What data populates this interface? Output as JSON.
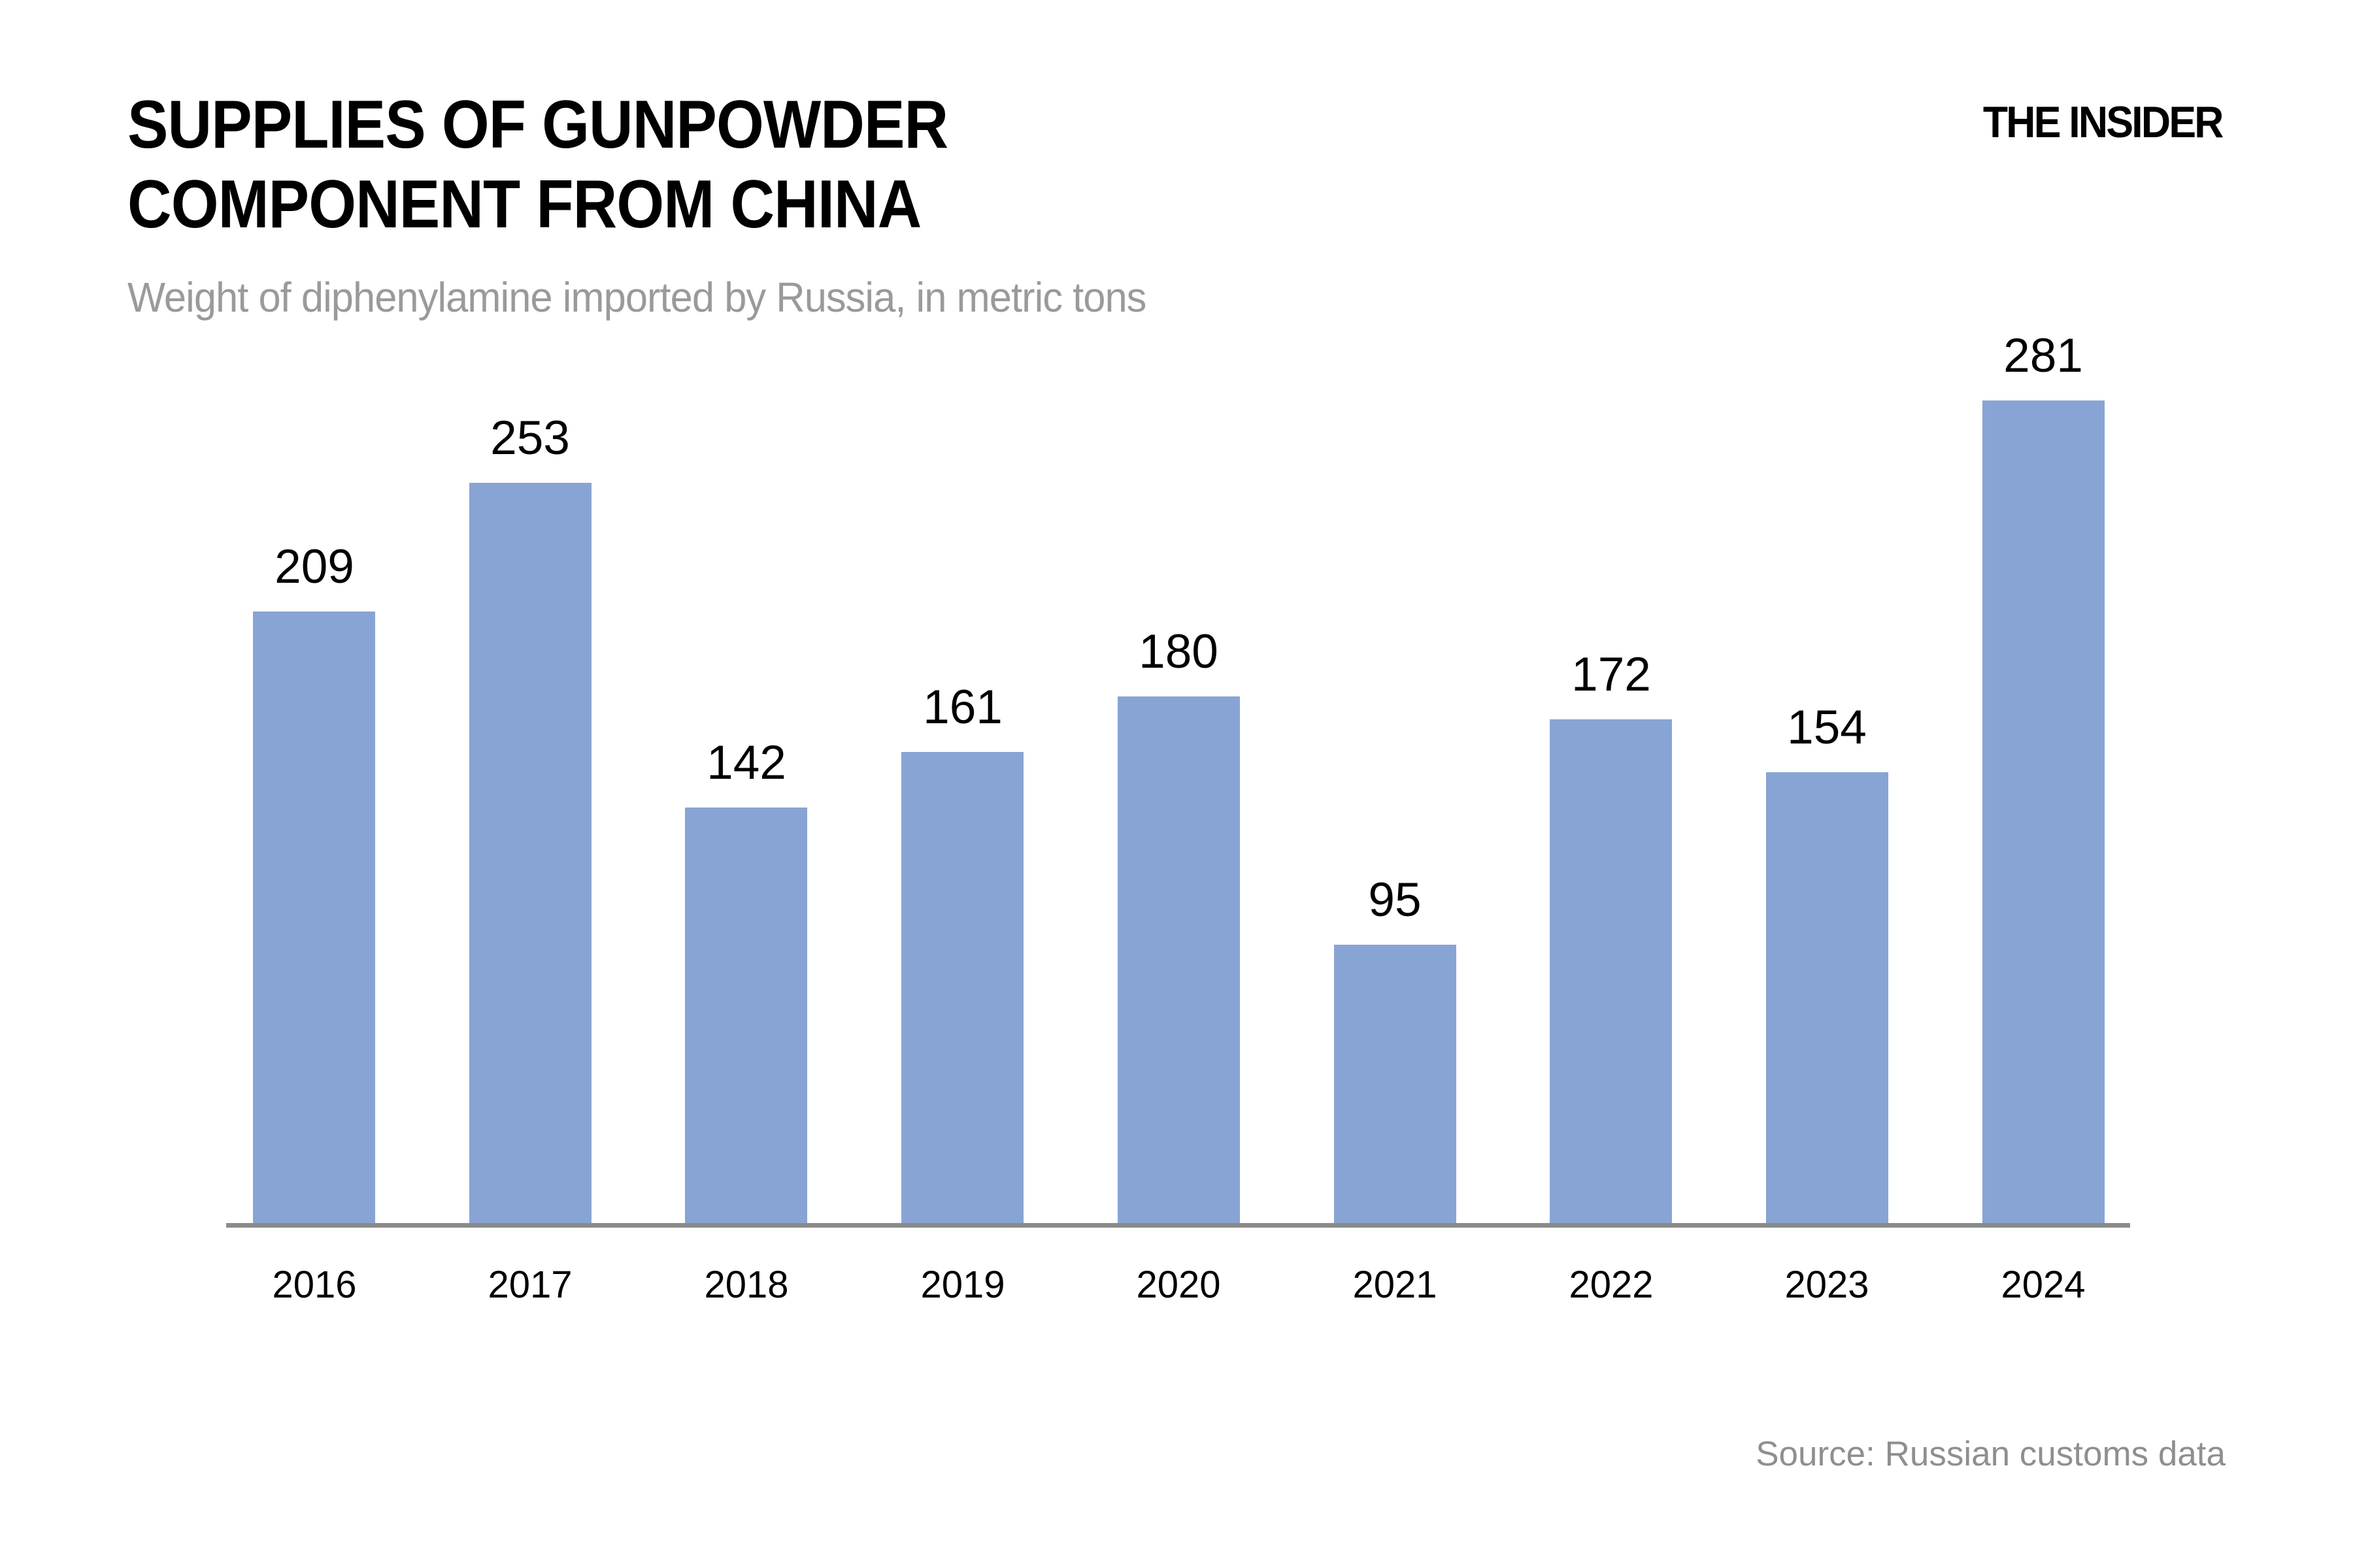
{
  "header": {
    "title_line1": "SUPPLIES OF GUNPOWDER",
    "title_line2": "COMPONENT FROM CHINA",
    "subtitle": "Weight of diphenylamine imported by Russia, in metric tons",
    "logo": "THE INSIDER"
  },
  "footer": {
    "source": "Source: Russian customs data"
  },
  "colors": {
    "bar": "#87a4d4",
    "axis": "#8a8a8a",
    "muted_text": "#9a9a9a",
    "text": "#000000",
    "background": "#ffffff"
  },
  "chart_data": {
    "type": "bar",
    "title": "SUPPLIES OF GUNPOWDER COMPONENT FROM CHINA",
    "subtitle": "Weight of diphenylamine imported by Russia, in metric tons",
    "categories": [
      "2016",
      "2017",
      "2018",
      "2019",
      "2020",
      "2021",
      "2022",
      "2023",
      "2024"
    ],
    "values": [
      209,
      253,
      142,
      161,
      180,
      95,
      172,
      154,
      281
    ],
    "xlabel": "",
    "ylabel": "",
    "ylim": [
      0,
      300
    ],
    "grid": false,
    "legend": false,
    "data_labels": true,
    "bar_color": "#87a4d4",
    "source": "Source: Russian customs data"
  }
}
